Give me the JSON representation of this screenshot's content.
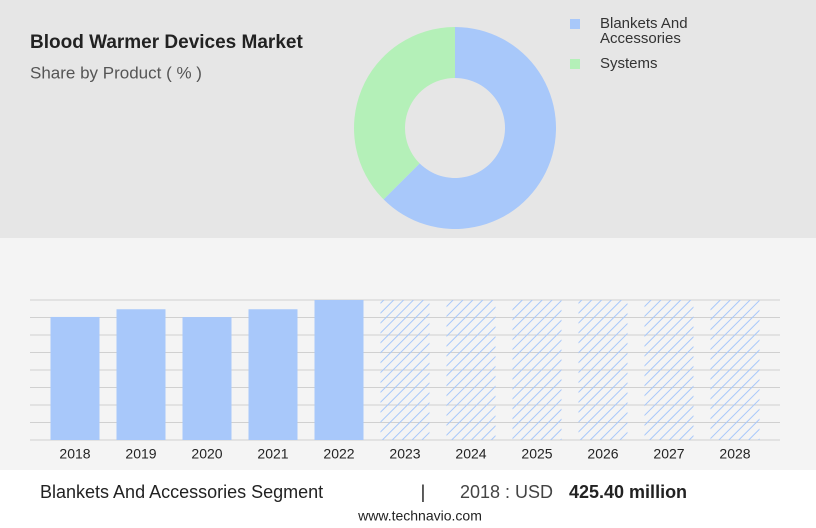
{
  "chart_data": [
    {
      "type": "donut",
      "title": "Blood Warmer Devices Market",
      "subtitle": "Share by Product ( % )",
      "categories": [
        "Blankets And Accessories",
        "Systems"
      ],
      "values": [
        62.5,
        37.5
      ],
      "colors": [
        "#a8c8fa",
        "#b4f0b8"
      ]
    },
    {
      "type": "bar",
      "categories": [
        "2018",
        "2019",
        "2020",
        "2021",
        "2022",
        "2023",
        "2024",
        "2025",
        "2026",
        "2027",
        "2028"
      ],
      "values": [
        425.4,
        452,
        425,
        452,
        484,
        null,
        null,
        null,
        null,
        null,
        null
      ],
      "color": "#a8c8fa",
      "ylim": [
        0,
        484
      ],
      "yticks": [
        0,
        60.5,
        121,
        181.5,
        242,
        302.5,
        363,
        423.5,
        484
      ],
      "grid": true
    }
  ],
  "footer": {
    "segment": "Blankets And Accessories Segment",
    "separator": "|",
    "period": "2018 : USD",
    "value": "425.40 million",
    "source": "www.technavio.com"
  }
}
